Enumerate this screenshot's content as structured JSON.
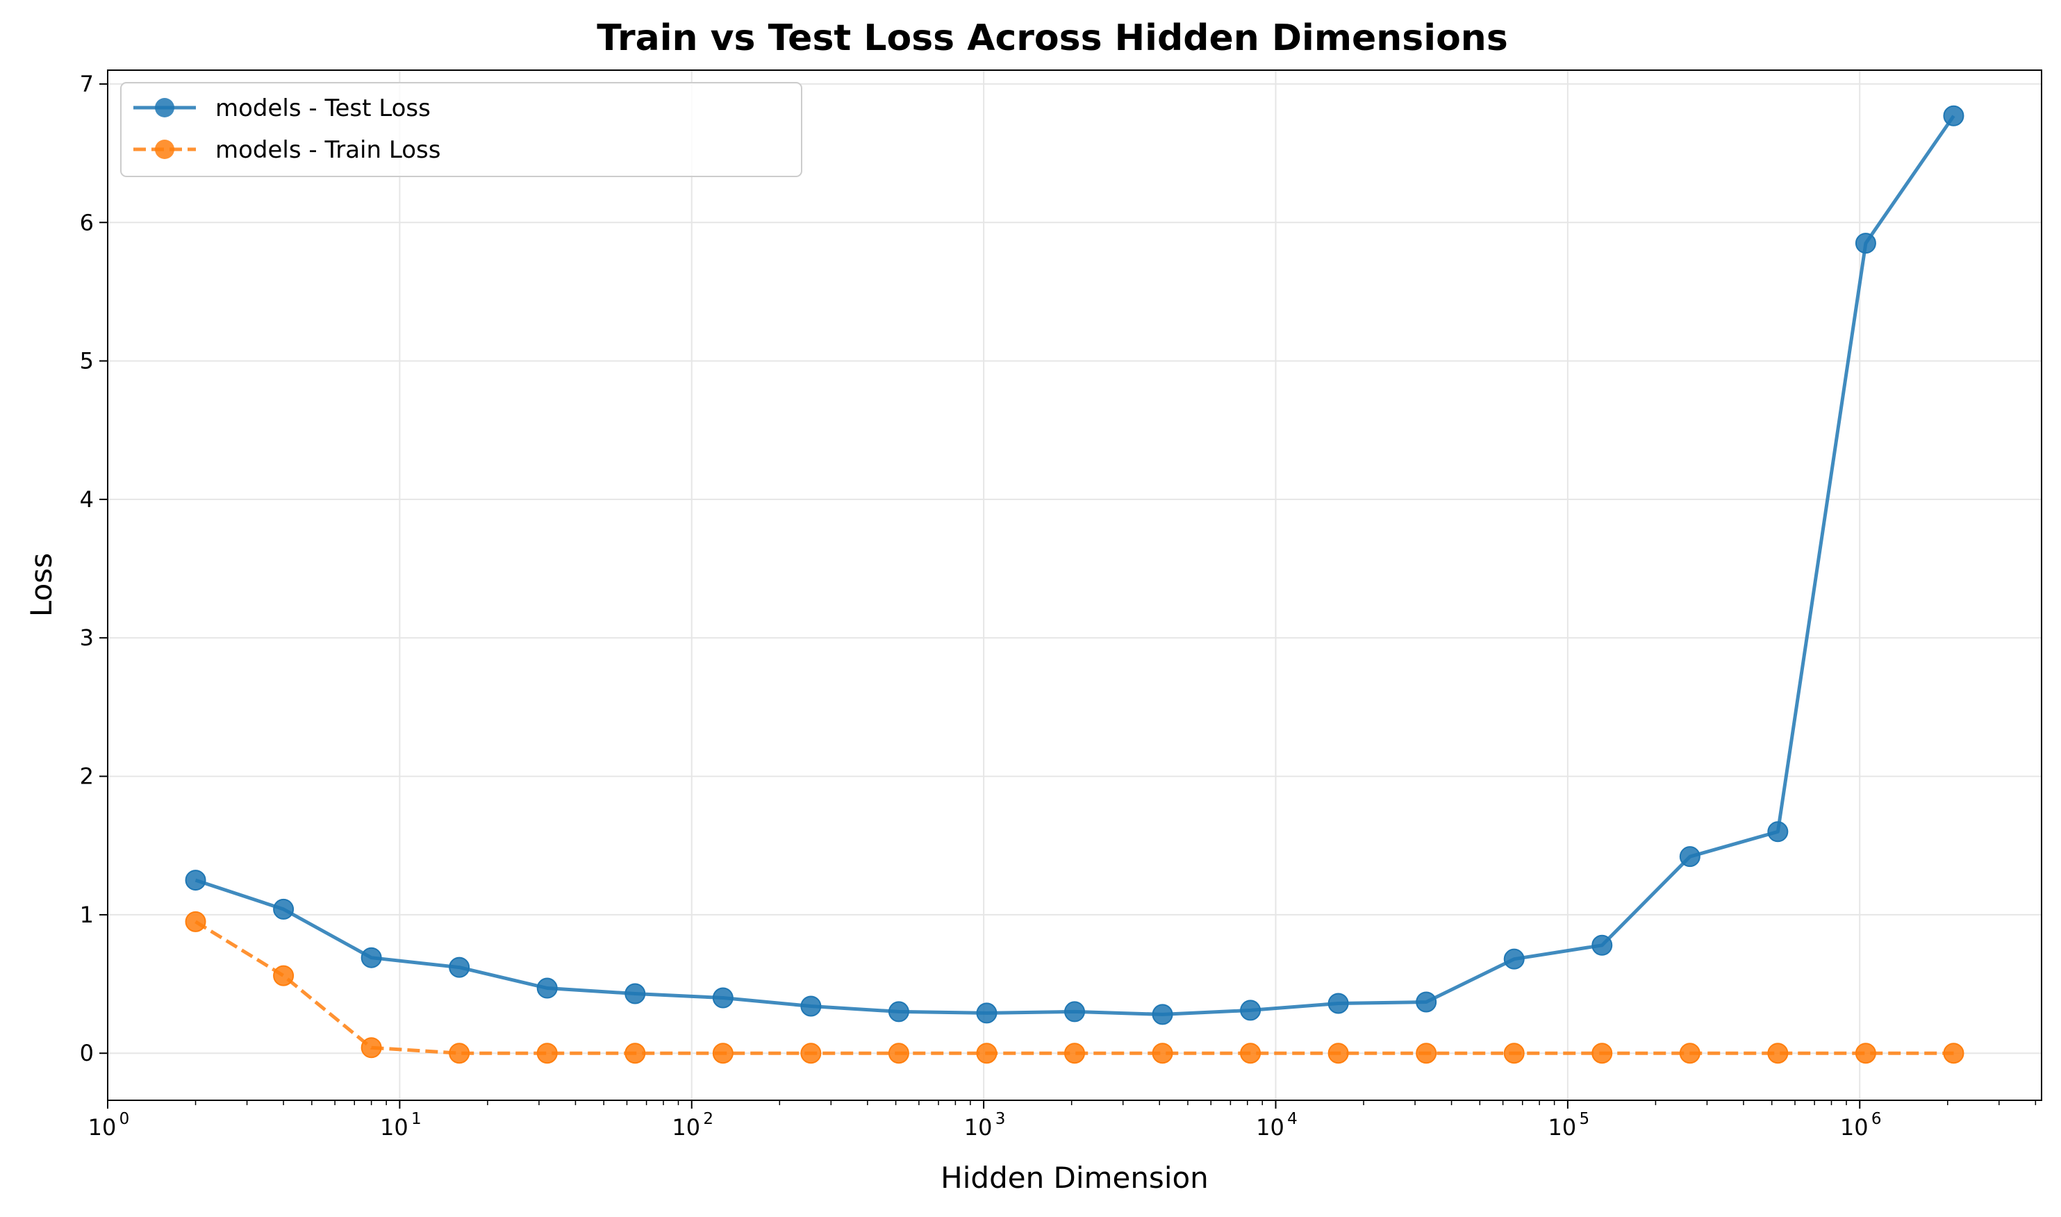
{
  "chart_data": {
    "type": "line",
    "title": "Train vs Test Loss Across Hidden Dimensions",
    "xlabel": "Hidden Dimension",
    "ylabel": "Loss",
    "xscale": "log",
    "xlim": [
      1,
      4194304
    ],
    "ylim": [
      -0.34,
      7.1
    ],
    "grid": true,
    "legend_position": "top-left",
    "x": [
      2,
      4,
      8,
      16,
      32,
      64,
      128,
      256,
      512,
      1024,
      2048,
      4096,
      8192,
      16384,
      32768,
      65536,
      131072,
      262144,
      524288,
      1048576,
      2097152
    ],
    "x_tick_labels": [
      {
        "base": "10",
        "exp": "0",
        "value": 1
      },
      {
        "base": "10",
        "exp": "1",
        "value": 10
      },
      {
        "base": "10",
        "exp": "2",
        "value": 100
      },
      {
        "base": "10",
        "exp": "3",
        "value": 1000
      },
      {
        "base": "10",
        "exp": "4",
        "value": 10000
      },
      {
        "base": "10",
        "exp": "5",
        "value": 100000
      },
      {
        "base": "10",
        "exp": "6",
        "value": 1000000
      }
    ],
    "y_tick_labels": [
      "0",
      "1",
      "2",
      "3",
      "4",
      "5",
      "6",
      "7"
    ],
    "series": [
      {
        "name": "models - Test Loss",
        "color": "#1f77b4",
        "line_style": "solid",
        "marker": "circle",
        "values": [
          1.25,
          1.04,
          0.69,
          0.62,
          0.47,
          0.43,
          0.4,
          0.34,
          0.3,
          0.29,
          0.3,
          0.28,
          0.31,
          0.36,
          0.37,
          0.68,
          0.78,
          1.42,
          1.6,
          5.85,
          6.77
        ]
      },
      {
        "name": "models - Train Loss",
        "color": "#ff7f0e",
        "line_style": "dashed",
        "marker": "circle",
        "values": [
          0.95,
          0.56,
          0.04,
          0.0,
          0.0,
          0.0,
          0.0,
          0.0,
          0.0,
          0.0,
          0.0,
          0.0,
          0.0,
          0.0,
          0.0,
          0.0,
          0.0,
          0.0,
          0.0,
          0.0,
          0.0
        ]
      }
    ]
  }
}
